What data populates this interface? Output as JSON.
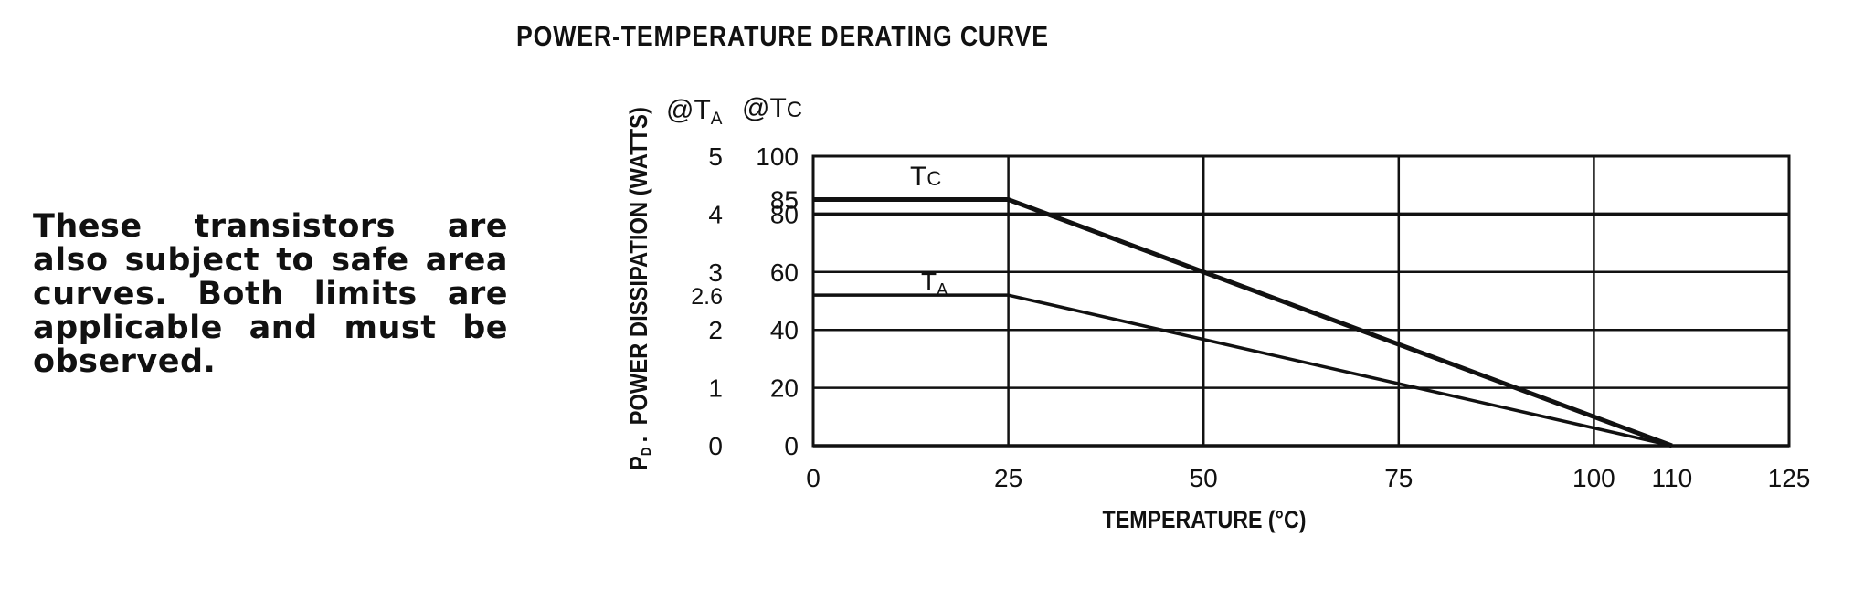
{
  "chart_data": {
    "type": "line",
    "title": "POWER-TEMPERATURE DERATING CURVE",
    "xlabel": "TEMPERATURE (°C)",
    "ylabel_main": "POWER DISSIPATION (WATTS)",
    "ylabel_prefix": "P",
    "ylabel_sub": "D",
    "xlim": [
      0,
      125
    ],
    "ylim_tc": [
      0,
      100
    ],
    "ylim_ta": [
      0,
      5
    ],
    "x_ticks": [
      "0",
      "25",
      "50",
      "75",
      "100",
      "110",
      "125"
    ],
    "x_tick_values": [
      0,
      25,
      50,
      75,
      100,
      110,
      125
    ],
    "ta_axis": {
      "header_prefix": "@T",
      "header_sub": "A",
      "ticks": [
        {
          "label": "5",
          "value": 5
        },
        {
          "label": "4",
          "value": 4
        },
        {
          "label": "3",
          "value": 3
        },
        {
          "label": "2.6",
          "value": 2.6
        },
        {
          "label": "2",
          "value": 2
        },
        {
          "label": "1",
          "value": 1
        },
        {
          "label": "0",
          "value": 0
        }
      ]
    },
    "tc_axis": {
      "header_prefix": "@T",
      "header_sub": "C",
      "ticks": [
        {
          "label": "100",
          "value": 100
        },
        {
          "label": "85",
          "value": 85
        },
        {
          "label": "80",
          "value": 80
        },
        {
          "label": "60",
          "value": 60
        },
        {
          "label": "40",
          "value": 40
        },
        {
          "label": "20",
          "value": 20
        },
        {
          "label": "0",
          "value": 0
        }
      ]
    },
    "grid_y_values": [
      0,
      20,
      40,
      60,
      80,
      100
    ],
    "grid_x_values": [
      0,
      25,
      50,
      75,
      100,
      125
    ],
    "grid": true,
    "series": [
      {
        "name_prefix": "T",
        "name_sub": "C",
        "axis": "tc",
        "x": [
          0,
          25,
          110
        ],
        "y": [
          85,
          85,
          0
        ]
      },
      {
        "name_prefix": "T",
        "name_sub": "A",
        "axis": "ta",
        "x": [
          0,
          25,
          110
        ],
        "y": [
          2.6,
          2.6,
          0
        ]
      }
    ]
  },
  "note": {
    "text": "These transistors are also subject to safe area curves. Both limits are applicable and must be observed."
  },
  "colors": {
    "ink": "#111111",
    "background": "#ffffff"
  }
}
